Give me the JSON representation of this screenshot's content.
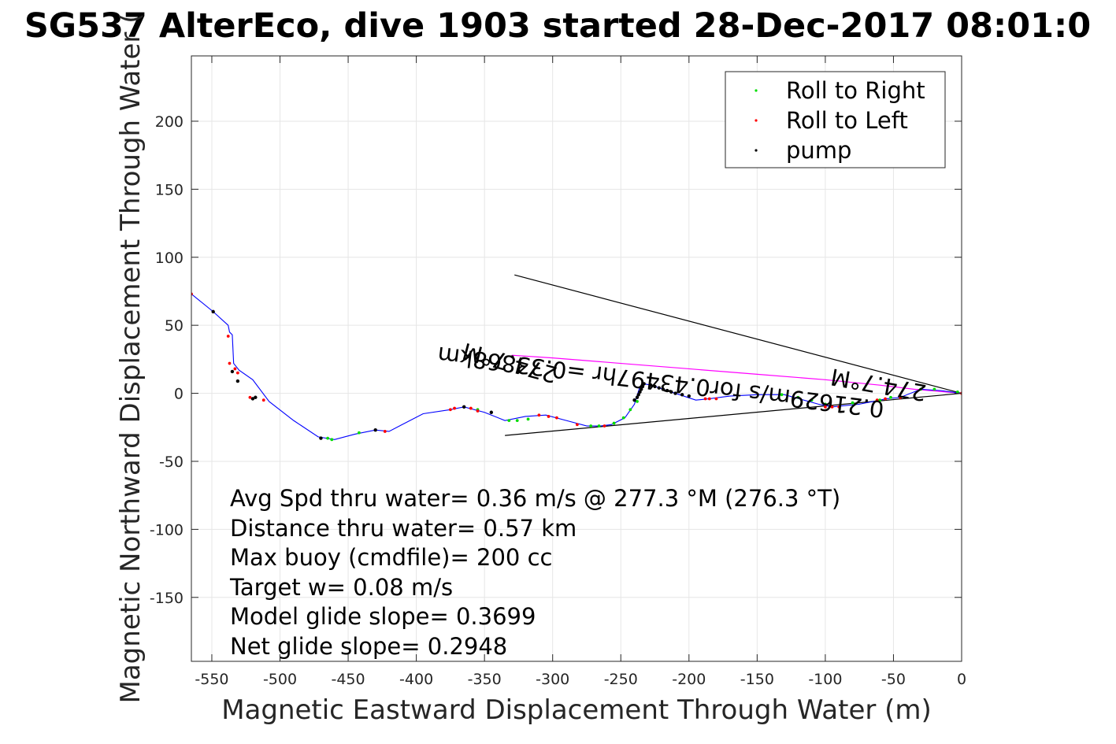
{
  "chart_data": {
    "type": "line",
    "title": "SG537 AlterEco, dive 1903 started 28-Dec-2017 08:01:0",
    "xlabel": "Magnetic Eastward Displacement Through Water (m)",
    "ylabel": "Magnetic Northward Displacement Through Water (",
    "xlim": [
      -565,
      0
    ],
    "ylim": [
      -197,
      248
    ],
    "xticks": [
      -550,
      -500,
      -450,
      -400,
      -350,
      -300,
      -250,
      -200,
      -150,
      -100,
      -50,
      0
    ],
    "yticks": [
      -150,
      -100,
      -50,
      0,
      50,
      100,
      150,
      200
    ],
    "grid": true,
    "legend_position": "top-right",
    "legend": [
      {
        "label": "Roll to Right",
        "color": "#00dd00"
      },
      {
        "label": "Roll to Left",
        "color": "#ff0000"
      },
      {
        "label": "pump",
        "color": "#000000"
      }
    ],
    "track": {
      "color": "#0000ff",
      "x": [
        0,
        -15,
        -30,
        -45,
        -55,
        -75,
        -95,
        -105,
        -130,
        -150,
        -170,
        -185,
        -195,
        -210,
        -222,
        -228,
        -233,
        -236,
        -240,
        -247,
        -257,
        -265,
        -275,
        -290,
        -305,
        -320,
        -335,
        -350,
        -365,
        -375,
        -395,
        -420,
        -430,
        -445,
        -460,
        -472,
        -490,
        -508,
        -520,
        -530,
        -534,
        -535,
        -537,
        -538,
        -549,
        -565
      ],
      "y": [
        0,
        2,
        3,
        -3,
        -4,
        -8,
        -10,
        -8,
        -1,
        -1,
        -2,
        -4,
        -5,
        0,
        4,
        6,
        7,
        5,
        -8,
        -18,
        -23,
        -24,
        -24,
        -20,
        -16,
        -17,
        -20,
        -14,
        -10,
        -12,
        -15,
        -28,
        -27,
        -30,
        -34,
        -32,
        -20,
        -6,
        10,
        17,
        22,
        43,
        45,
        50,
        60,
        73
      ]
    },
    "series": [
      {
        "name": "Roll to Right",
        "color": "#00dd00",
        "x": [
          -3,
          -20,
          -30,
          -52,
          -60,
          -80,
          -100,
          -110,
          -120,
          -132,
          -238,
          -243,
          -248,
          -255,
          -266,
          -272,
          -318,
          -326,
          -332,
          -355,
          -442,
          -462,
          -465
        ],
        "y": [
          1,
          3,
          3,
          -3,
          -5,
          -7,
          -8,
          -5,
          -3,
          -1,
          -6,
          -12,
          -18,
          -22,
          -24,
          -24,
          -19,
          -20,
          -20,
          -12,
          -29,
          -34,
          -33
        ]
      },
      {
        "name": "Roll to Left",
        "color": "#ff0000",
        "x": [
          0,
          -45,
          -56,
          -62,
          -90,
          -95,
          -100,
          -180,
          -185,
          -188,
          -262,
          -282,
          -297,
          -303,
          -310,
          -355,
          -360,
          -365,
          -372,
          -375,
          -423,
          -470,
          -512,
          -522,
          -531,
          -533,
          -537,
          -538,
          -549,
          -565
        ],
        "y": [
          0,
          -3,
          -4,
          -5,
          -10,
          -10,
          -10,
          -4,
          -4,
          -4,
          -24,
          -23,
          -18,
          -17,
          -16,
          -13,
          -11,
          -10,
          -11,
          -12,
          -28,
          -33,
          -5,
          -3,
          15,
          18,
          22,
          42,
          60,
          73
        ]
      },
      {
        "name": "pump",
        "color": "#000000",
        "x": [
          -200,
          -205,
          -210,
          -213,
          -216,
          -219,
          -222,
          -225,
          -228,
          -233,
          -234,
          -235,
          -236,
          -237,
          -238,
          -240,
          -345,
          -365,
          -430,
          -470,
          -518,
          -520,
          -531,
          -535,
          -549
        ],
        "y": [
          -2,
          -1,
          0,
          1,
          2,
          3,
          4,
          5,
          6,
          7,
          5,
          3,
          1,
          -1,
          -3,
          -5,
          -14,
          -10,
          -27,
          -33,
          -3,
          -4,
          9,
          16,
          60
        ]
      }
    ],
    "pink_track": {
      "color": "#ff00ff",
      "x": [
        0,
        -35,
        -60,
        -100,
        -150,
        -200,
        -250,
        -300,
        -330
      ],
      "y": [
        0,
        3,
        6,
        10,
        14,
        18,
        22,
        26,
        28
      ]
    },
    "ref_lines": [
      {
        "x": [
          0,
          -328
        ],
        "y": [
          0,
          87
        ]
      },
      {
        "x": [
          0,
          -335
        ],
        "y": [
          0,
          -31
        ]
      }
    ],
    "annotations": [
      {
        "text": "274.7°M",
        "x": -330,
        "y": 28,
        "rotation": 195
      },
      {
        "text": "0.21629m/s for0.43497hr =0.33868km",
        "x": -220,
        "y": 14,
        "rotation": 187
      },
      {
        "text": "274.7°M",
        "x": -60,
        "y": 12,
        "rotation": 190
      }
    ],
    "stats": [
      "Avg Spd thru water=  0.36 m/s @ 277.3 °M (276.3 °T)",
      "Distance thru water=  0.57 km",
      "Max buoy (cmdfile)= 200 cc",
      "Target w= 0.08 m/s",
      "Model glide slope= 0.3699",
      "Net glide slope= 0.2948"
    ]
  }
}
